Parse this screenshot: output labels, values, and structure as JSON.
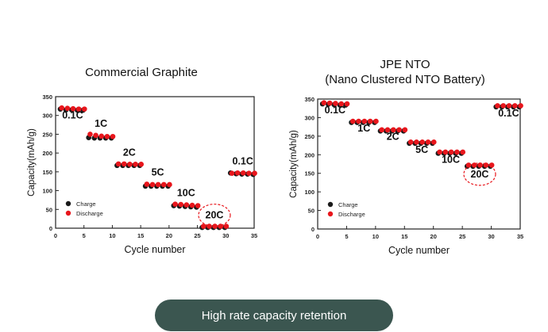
{
  "charts": [
    {
      "title_lines": [
        "Commercial Graphite"
      ],
      "chart_data": {
        "type": "scatter",
        "title": "Commercial Graphite",
        "xlabel": "Cycle number",
        "ylabel": "Capacity(mAh/g)",
        "xlim": [
          0,
          35
        ],
        "ylim": [
          0,
          350
        ],
        "xticks": [
          0,
          5,
          10,
          15,
          20,
          25,
          30,
          35
        ],
        "yticks": [
          0,
          50,
          100,
          150,
          200,
          250,
          300,
          350
        ],
        "legend": {
          "position": "bottom-left",
          "entries": [
            "Charge",
            "Discharge"
          ]
        },
        "series": [
          {
            "name": "Charge",
            "x": [
              1,
              2,
              3,
              4,
              5,
              6,
              7,
              8,
              9,
              10,
              11,
              12,
              13,
              14,
              15,
              16,
              17,
              18,
              19,
              20,
              21,
              22,
              23,
              24,
              25,
              26,
              27,
              28,
              29,
              30,
              31,
              32,
              33,
              34,
              35
            ],
            "values": [
              318,
              316,
              316,
              315,
              315,
              242,
              241,
              241,
              241,
              241,
              168,
              168,
              168,
              168,
              168,
              113,
              113,
              113,
              113,
              113,
              61,
              60,
              59,
              58,
              57,
              3,
              3,
              3,
              3,
              3,
              148,
              146,
              145,
              145,
              144
            ]
          },
          {
            "name": "Discharge",
            "x": [
              1,
              2,
              3,
              4,
              5,
              6,
              7,
              8,
              9,
              10,
              11,
              12,
              13,
              14,
              15,
              16,
              17,
              18,
              19,
              20,
              21,
              22,
              23,
              24,
              25,
              26,
              27,
              28,
              29,
              30,
              31,
              32,
              33,
              34,
              35
            ],
            "values": [
              319,
              318,
              317,
              316,
              316,
              249,
              246,
              244,
              243,
              243,
              170,
              170,
              169,
              169,
              169,
              116,
              115,
              115,
              115,
              115,
              63,
              62,
              61,
              60,
              59,
              4,
              4,
              4,
              4,
              4,
              145,
              146,
              146,
              145,
              145
            ]
          }
        ],
        "annotations": [
          {
            "text": "0.1C",
            "x": 3,
            "y": 292
          },
          {
            "text": "1C",
            "x": 8,
            "y": 270
          },
          {
            "text": "2C",
            "x": 13,
            "y": 193
          },
          {
            "text": "5C",
            "x": 18,
            "y": 140
          },
          {
            "text": "10C",
            "x": 23,
            "y": 85
          },
          {
            "text": "20C",
            "x": 28,
            "y": 26,
            "circled": true
          },
          {
            "text": "0.1C",
            "x": 33,
            "y": 170
          }
        ],
        "colors": {
          "charge": "#1a1a1a",
          "discharge": "#e8161c",
          "highlight": "#e8161c"
        }
      }
    },
    {
      "title_lines": [
        "JPE NTO",
        "(Nano Clustered NTO Battery)"
      ],
      "chart_data": {
        "type": "scatter",
        "title": "JPE NTO (Nano Clustered NTO Battery)",
        "xlabel": "Cycle number",
        "ylabel": "Capacity(mAh/g)",
        "xlim": [
          0,
          35
        ],
        "ylim": [
          0,
          350
        ],
        "xticks": [
          0,
          5,
          10,
          15,
          20,
          25,
          30,
          35
        ],
        "yticks": [
          0,
          50,
          100,
          150,
          200,
          250,
          300,
          350
        ],
        "legend": {
          "position": "bottom-left",
          "entries": [
            "Charge",
            "Discharge"
          ]
        },
        "series": [
          {
            "name": "Charge",
            "x": [
              1,
              2,
              3,
              4,
              5,
              6,
              7,
              8,
              9,
              10,
              11,
              12,
              13,
              14,
              15,
              16,
              17,
              18,
              19,
              20,
              21,
              22,
              23,
              24,
              25,
              26,
              27,
              28,
              29,
              30,
              31,
              32,
              33,
              34,
              35
            ],
            "values": [
              338,
              337,
              336,
              335,
              335,
              288,
              288,
              288,
              288,
              288,
              265,
              265,
              265,
              265,
              265,
              232,
              232,
              232,
              232,
              232,
              205,
              205,
              205,
              205,
              205,
              170,
              170,
              170,
              170,
              170,
              330,
              330,
              330,
              330,
              330
            ]
          },
          {
            "name": "Discharge",
            "x": [
              1,
              2,
              3,
              4,
              5,
              6,
              7,
              8,
              9,
              10,
              11,
              12,
              13,
              14,
              15,
              16,
              17,
              18,
              19,
              20,
              21,
              22,
              23,
              24,
              25,
              26,
              27,
              28,
              29,
              30,
              31,
              32,
              33,
              34,
              35
            ],
            "values": [
              339,
              338,
              337,
              336,
              336,
              289,
              289,
              289,
              289,
              289,
              266,
              266,
              266,
              266,
              266,
              233,
              233,
              233,
              233,
              233,
              206,
              206,
              206,
              206,
              206,
              171,
              171,
              171,
              171,
              171,
              331,
              331,
              331,
              331,
              331
            ]
          }
        ],
        "annotations": [
          {
            "text": "0.1C",
            "x": 3,
            "y": 312
          },
          {
            "text": "1C",
            "x": 8,
            "y": 262
          },
          {
            "text": "2C",
            "x": 13,
            "y": 240
          },
          {
            "text": "5C",
            "x": 18,
            "y": 205
          },
          {
            "text": "10C",
            "x": 23,
            "y": 178
          },
          {
            "text": "20C",
            "x": 28,
            "y": 139,
            "circled": true
          },
          {
            "text": "0.1C",
            "x": 33,
            "y": 303
          }
        ],
        "colors": {
          "charge": "#1a1a1a",
          "discharge": "#e8161c",
          "highlight": "#e8161c"
        }
      }
    }
  ],
  "footer": {
    "label": "High rate capacity retention"
  },
  "colors": {
    "pill_bg": "#3b5650",
    "pill_text": "#ffffff"
  }
}
